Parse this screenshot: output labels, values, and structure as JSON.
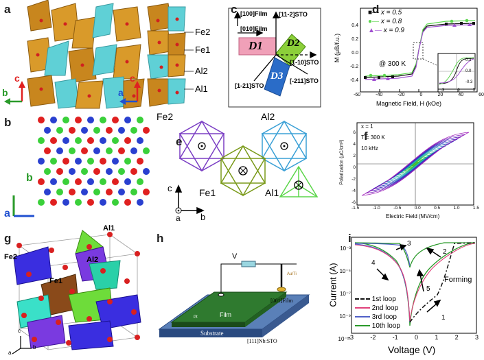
{
  "panels": {
    "a": {
      "label": "a",
      "sites": [
        "Fe2",
        "Fe1",
        "Al2",
        "Al1"
      ],
      "axes": [
        "c",
        "b",
        "c",
        "a"
      ]
    },
    "b": {
      "label": "b",
      "axes": [
        "b",
        "a"
      ]
    },
    "c": {
      "label": "c",
      "dirs": [
        "[100]Film",
        "[010]Film",
        "[11-2]STO",
        "[1-10]STO",
        "[1-21]STO",
        "[-211]STO"
      ],
      "domains": [
        "D1",
        "D2",
        "D3"
      ]
    },
    "d": {
      "label": "d",
      "ylabel": "M (μB/f.u.)",
      "xlabel": "Magnetic Field, H (kOe)",
      "annotation": "@ 300 K",
      "xticks": [
        "-60",
        "-40",
        "-20",
        "0",
        "20",
        "40",
        "60"
      ],
      "yticks": [
        "0.4",
        "0.2",
        "0.0",
        "-0.2",
        "-0.4"
      ],
      "legend": [
        "x = 0.5",
        "x = 0.8",
        "x = 0.9"
      ],
      "inset_xticks": [
        "-3",
        "0",
        "3"
      ],
      "inset_yticks": [
        "0.3",
        "0.0",
        "-0.3"
      ],
      "colors": {
        "s1": "#111111",
        "s2": "#5dd64f",
        "s3": "#a050d0"
      }
    },
    "e": {
      "label": "e",
      "sites": [
        "Fe2",
        "Al2",
        "Fe1",
        "Al1"
      ],
      "axes": [
        "c",
        "a",
        "b"
      ],
      "colors": {
        "fe2": "#7b3fc4",
        "al2": "#3aa0d6",
        "fe1": "#7a9a1a",
        "al1": "#5cd64a"
      }
    },
    "f": {
      "label": "f",
      "notes": [
        "x = 1",
        "T = 300 K",
        "10 kHz"
      ],
      "ylabel": "Polarization (μC/cm²)",
      "xlabel": "Electric Field (MV/cm)",
      "xticks": [
        "-1.5",
        "-1.0",
        "-0.5",
        "0.0",
        "0.5",
        "1.0",
        "1.5"
      ],
      "yticks": [
        "6",
        "4",
        "2",
        "0",
        "-2",
        "-4",
        "-6"
      ]
    },
    "g": {
      "label": "g",
      "sites": [
        "Al1",
        "Fe2",
        "Al2",
        "Fe1"
      ],
      "axes": [
        "c",
        "a",
        "b"
      ]
    },
    "h": {
      "label": "h",
      "voltage": "V",
      "texts": [
        "Film",
        "Substrate",
        "[001]Film",
        "[111]Nb:STO",
        "Pt",
        "Au/Ti"
      ]
    },
    "i": {
      "label": "i",
      "ylabel": "Current (A)",
      "xlabel": "Voltage (V)",
      "xticks": [
        "-3",
        "-2",
        "-1",
        "0",
        "1",
        "2",
        "3"
      ],
      "yticks": [
        "10⁻³",
        "10⁻⁵",
        "10⁻⁷",
        "10⁻⁹",
        "10⁻¹¹"
      ],
      "legend": [
        "1st loop",
        "2nd loop",
        "3rd loop",
        "10th loop"
      ],
      "annotations": [
        "Forming",
        "1",
        "2",
        "3",
        "4",
        "5"
      ],
      "colors": {
        "l1": "#111111",
        "l2": "#e0407a",
        "l3": "#5060c8",
        "l10": "#2a9a2a"
      }
    }
  }
}
